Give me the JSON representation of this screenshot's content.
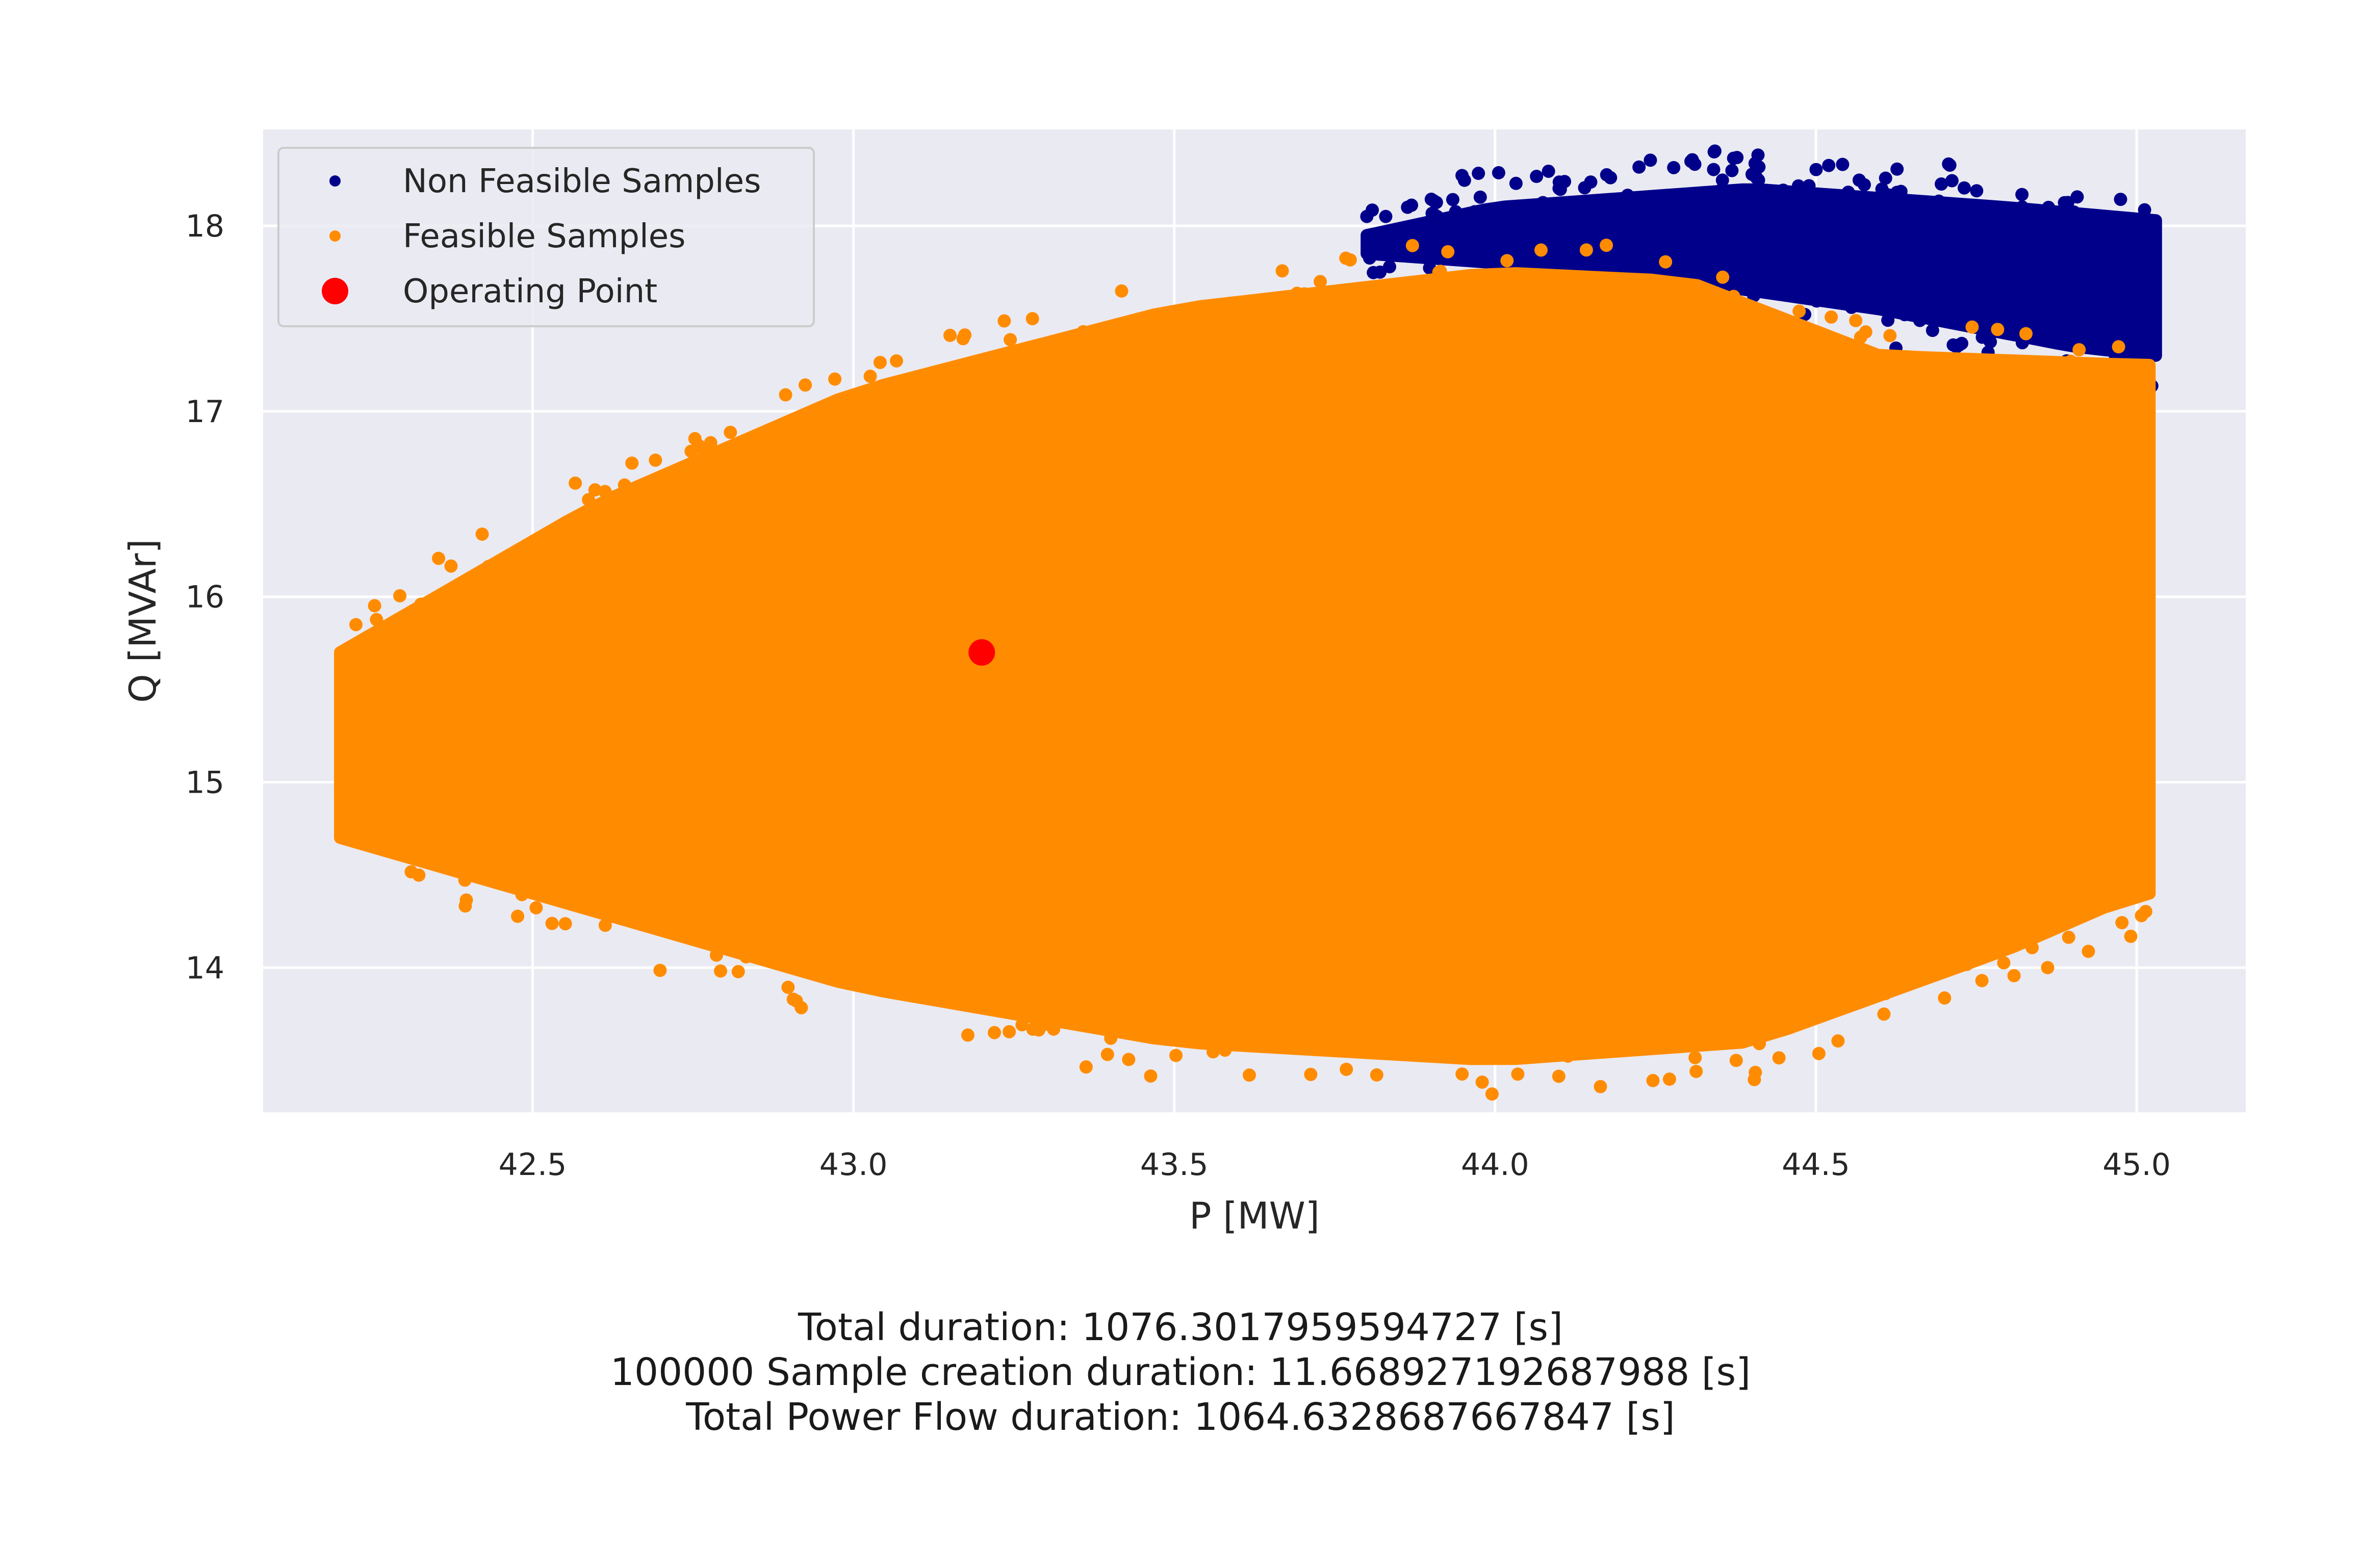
{
  "chart_data": {
    "type": "scatter",
    "xlabel": "P [MW]",
    "ylabel": "Q [MVAr]",
    "xlim": [
      42.08,
      45.17
    ],
    "ylim": [
      13.22,
      18.52
    ],
    "x_ticks": [
      42.5,
      43.0,
      43.5,
      44.0,
      44.5,
      45.0
    ],
    "x_tick_labels": [
      "42.5",
      "43.0",
      "43.5",
      "44.0",
      "44.5",
      "45.0"
    ],
    "y_ticks": [
      14,
      15,
      16,
      17,
      18
    ],
    "y_tick_labels": [
      "14",
      "15",
      "16",
      "17",
      "18"
    ],
    "grid": true,
    "legend_position": "top-left",
    "series": [
      {
        "name": "Non Feasible Samples",
        "color": "#00008b",
        "region": {
          "x_range": [
            43.8,
            45.03
          ],
          "q_lower_at_p": [
            [
              43.8,
              17.85
            ],
            [
              44.2,
              17.75
            ],
            [
              44.6,
              17.55
            ],
            [
              44.9,
              17.35
            ],
            [
              45.03,
              17.3
            ]
          ],
          "q_upper_at_p": [
            [
              43.8,
              17.95
            ],
            [
              44.0,
              18.1
            ],
            [
              44.4,
              18.2
            ],
            [
              44.8,
              18.1
            ],
            [
              45.03,
              18.03
            ]
          ]
        }
      },
      {
        "name": "Feasible Samples",
        "color": "#ff8c00",
        "region": {
          "x_range": [
            42.2,
            45.02
          ],
          "q_lower_at_p": [
            [
              42.2,
              14.7
            ],
            [
              42.6,
              14.3
            ],
            [
              43.0,
              13.9
            ],
            [
              43.5,
              13.6
            ],
            [
              44.0,
              13.5
            ],
            [
              44.4,
              13.6
            ],
            [
              44.8,
              14.1
            ],
            [
              45.0,
              14.4
            ]
          ],
          "q_upper_at_p": [
            [
              42.2,
              15.7
            ],
            [
              42.6,
              16.5
            ],
            [
              43.0,
              17.1
            ],
            [
              43.5,
              17.55
            ],
            [
              44.0,
              17.75
            ],
            [
              44.3,
              17.7
            ],
            [
              44.6,
              17.3
            ],
            [
              45.0,
              17.25
            ]
          ]
        }
      },
      {
        "name": "Operating Point",
        "color": "#ff0000",
        "x": [
          43.2
        ],
        "y": [
          15.7
        ]
      }
    ]
  },
  "footer": {
    "line1": "Total duration: 1076.3017959594727 [s]",
    "line2": "100000 Sample creation duration: 11.668927192687988 [s]",
    "line3": "Total Power Flow duration: 1064.6328687667847 [s]"
  }
}
